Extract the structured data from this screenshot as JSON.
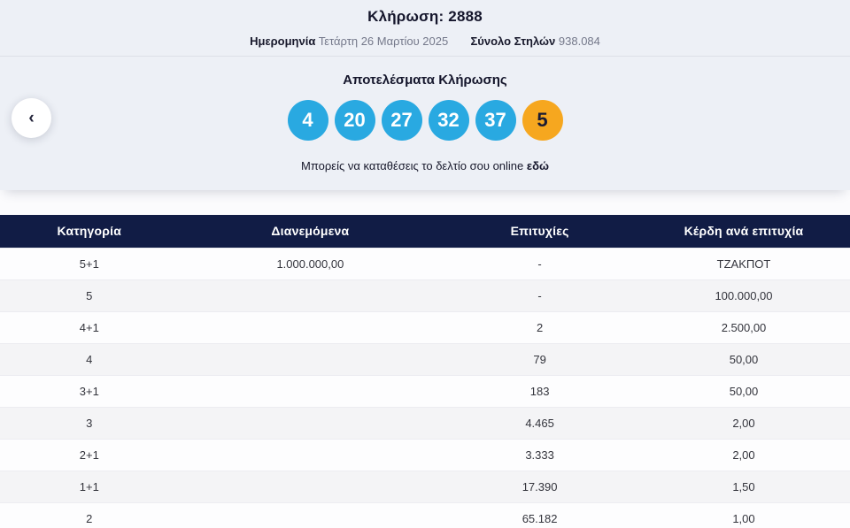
{
  "colors": {
    "panel_bg": "#EDF0F6",
    "ball_blue": "#29A9E1",
    "ball_joker": "#F6A71F",
    "header_bg": "#111C45"
  },
  "icons": {
    "chevron_left": "‹"
  },
  "draw": {
    "title": "Κλήρωση: 2888",
    "date_label": "Ημερομηνία",
    "date_value": "Τετάρτη 26 Μαρτίου 2025",
    "columns_label": "Σύνολο Στηλών",
    "columns_value": "938.084"
  },
  "results": {
    "title": "Αποτελέσματα Κλήρωσης",
    "balls": [
      {
        "value": "4",
        "type": "number"
      },
      {
        "value": "20",
        "type": "number"
      },
      {
        "value": "27",
        "type": "number"
      },
      {
        "value": "32",
        "type": "number"
      },
      {
        "value": "37",
        "type": "number"
      },
      {
        "value": "5",
        "type": "joker"
      }
    ],
    "cta_text": "Μπορείς να καταθέσεις το δελτίο σου online",
    "cta_link": "εδώ"
  },
  "table": {
    "headers": [
      "Κατηγορία",
      "Διανεμόμενα",
      "Επιτυχίες",
      "Κέρδη ανά επιτυχία"
    ],
    "rows": [
      [
        "5+1",
        "1.000.000,00",
        "-",
        "ΤΖΑΚΠΟΤ"
      ],
      [
        "5",
        "",
        "-",
        "100.000,00"
      ],
      [
        "4+1",
        "",
        "2",
        "2.500,00"
      ],
      [
        "4",
        "",
        "79",
        "50,00"
      ],
      [
        "3+1",
        "",
        "183",
        "50,00"
      ],
      [
        "3",
        "",
        "4.465",
        "2,00"
      ],
      [
        "2+1",
        "",
        "3.333",
        "2,00"
      ],
      [
        "1+1",
        "",
        "17.390",
        "1,50"
      ],
      [
        "2",
        "",
        "65.182",
        "1,00"
      ]
    ]
  }
}
